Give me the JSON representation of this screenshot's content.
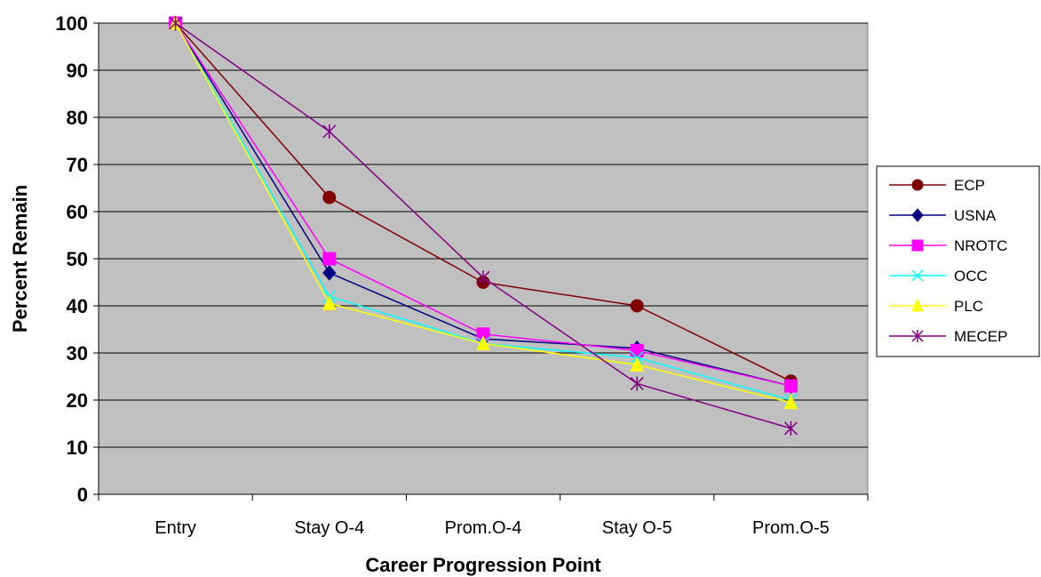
{
  "chart_data": {
    "type": "line",
    "title": "",
    "xlabel": "Career Progression Point",
    "ylabel": "Percent Remain",
    "categories": [
      "Entry",
      "Stay O-4",
      "Prom.O-4",
      "Stay O-5",
      "Prom.O-5"
    ],
    "ylim": [
      0,
      100
    ],
    "yticks": [
      0,
      10,
      20,
      30,
      40,
      50,
      60,
      70,
      80,
      90,
      100
    ],
    "grid": true,
    "plot_background": "#c0c0c0",
    "legend_position": "right",
    "series": [
      {
        "name": "ECP",
        "color": "#800000",
        "marker": "circle",
        "values": [
          100,
          63,
          45,
          40,
          24
        ]
      },
      {
        "name": "USNA",
        "color": "#000080",
        "marker": "diamond",
        "values": [
          100,
          47,
          33,
          31,
          23
        ]
      },
      {
        "name": "NROTC",
        "color": "#ff00ff",
        "marker": "square",
        "values": [
          100,
          50,
          34,
          30.5,
          23
        ]
      },
      {
        "name": "OCC",
        "color": "#00ffff",
        "marker": "x",
        "values": [
          100,
          42,
          32,
          29,
          20
        ]
      },
      {
        "name": "PLC",
        "color": "#ffff00",
        "marker": "triangle",
        "values": [
          100,
          40.5,
          32,
          27.5,
          19.5
        ]
      },
      {
        "name": "MECEP",
        "color": "#800080",
        "marker": "star",
        "values": [
          100,
          77,
          46,
          23.5,
          14
        ]
      }
    ]
  }
}
